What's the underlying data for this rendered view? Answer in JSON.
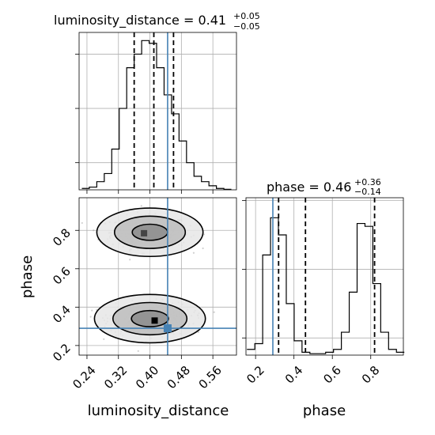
{
  "chart_data": [
    {
      "type": "histogram",
      "panel": "luminosity_distance-marginal",
      "title": {
        "prefix": "luminosity_distance = ",
        "value": "0.41",
        "upper": "+0.05",
        "lower": "−0.05"
      },
      "xlim": [
        0.22,
        0.62
      ],
      "bin_edges": [
        0.227,
        0.246,
        0.265,
        0.284,
        0.303,
        0.322,
        0.341,
        0.36,
        0.379,
        0.398,
        0.417,
        0.436,
        0.455,
        0.474,
        0.493,
        0.512,
        0.531,
        0.55,
        0.569,
        0.588,
        0.607
      ],
      "counts": [
        0.5,
        1,
        3,
        6,
        15,
        30,
        45,
        50,
        55,
        54,
        45,
        35,
        28,
        18,
        10,
        5,
        3,
        1.5,
        0.5,
        0.2
      ],
      "ylim": [
        0,
        58
      ],
      "y_grid": [
        10,
        30,
        50
      ],
      "quantiles": [
        0.36,
        0.41,
        0.46
      ],
      "truth": 0.445
    },
    {
      "type": "contour-scatter",
      "panel": "2d-joint",
      "xlabel": "luminosity_distance",
      "ylabel": "phase",
      "xlim": [
        0.22,
        0.62
      ],
      "ylim": [
        0.15,
        0.97
      ],
      "xticks": [
        "0.24",
        "0.32",
        "0.40",
        "0.48",
        "0.56"
      ],
      "xtick_values": [
        0.24,
        0.32,
        0.4,
        0.48,
        0.56
      ],
      "yticks": [
        "0.2",
        "0.4",
        "0.6",
        "0.8"
      ],
      "ytick_values": [
        0.2,
        0.4,
        0.6,
        0.8
      ],
      "modes": [
        {
          "x": 0.4,
          "y": 0.79,
          "sx": 0.045,
          "sy": 0.042
        },
        {
          "x": 0.4,
          "y": 0.34,
          "sx": 0.047,
          "sy": 0.042
        }
      ],
      "contour_levels": [
        0.5,
        1.0,
        1.5
      ],
      "peaks": [
        [
          0.385,
          0.785
        ],
        [
          0.412,
          0.33
        ]
      ],
      "truth": {
        "x": 0.445,
        "y": 0.29
      }
    },
    {
      "type": "histogram",
      "panel": "phase-marginal",
      "title": {
        "prefix": "phase = ",
        "value": "0.46",
        "upper": "+0.36",
        "lower": "−0.14"
      },
      "xlabel": "phase",
      "xlim": [
        0.15,
        0.97
      ],
      "xticks": [
        "0.2",
        "0.4",
        "0.6",
        "0.8"
      ],
      "xtick_values": [
        0.2,
        0.4,
        0.6,
        0.8
      ],
      "bin_edges": [
        0.155,
        0.196,
        0.237,
        0.278,
        0.319,
        0.36,
        0.401,
        0.442,
        0.483,
        0.524,
        0.565,
        0.606,
        0.647,
        0.688,
        0.729,
        0.77,
        0.811,
        0.852,
        0.893,
        0.934,
        0.975
      ],
      "counts": [
        2,
        4,
        35,
        48,
        42,
        18,
        5,
        1,
        0.5,
        0.5,
        1,
        2,
        8,
        22,
        46,
        45,
        25,
        8,
        2,
        1
      ],
      "ylim": [
        0,
        55
      ],
      "y_grid": [
        6,
        30,
        54
      ],
      "quantiles": [
        0.32,
        0.46,
        0.82
      ],
      "truth": 0.29
    }
  ]
}
